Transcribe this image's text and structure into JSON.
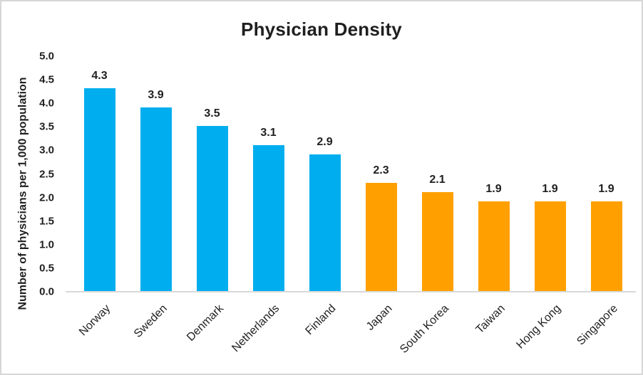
{
  "chart_data": {
    "type": "bar",
    "title": "Physician Density",
    "xlabel": "",
    "ylabel": "Number of physicians per 1,000 population",
    "categories": [
      "Norway",
      "Sweden",
      "Denmark",
      "Netherlands",
      "Finland",
      "Japan",
      "South Korea",
      "Taiwan",
      "Hong Kong",
      "Singapore"
    ],
    "values": [
      4.3,
      3.9,
      3.5,
      3.1,
      2.9,
      2.3,
      2.1,
      1.9,
      1.9,
      1.9
    ],
    "value_labels": [
      "4.3",
      "3.9",
      "3.5",
      "3.1",
      "2.9",
      "2.3",
      "2.1",
      "1.9",
      "1.9",
      "1.9"
    ],
    "bar_colors": [
      "#00AEEF",
      "#00AEEF",
      "#00AEEF",
      "#00AEEF",
      "#00AEEF",
      "#FFA000",
      "#FFA000",
      "#FFA000",
      "#FFA000",
      "#FFA000"
    ],
    "ylim": [
      0.0,
      5.0
    ],
    "ytick_labels": [
      "0.0",
      "0.5",
      "1.0",
      "1.5",
      "2.0",
      "2.5",
      "3.0",
      "3.5",
      "4.0",
      "4.5",
      "5.0"
    ],
    "grid": "off",
    "legend": "none",
    "axis_line_color": "#D9D9D9",
    "text_color": "#1F1F1F",
    "background_color": "#FFFFFF",
    "border_color": "#D6D6D6"
  }
}
